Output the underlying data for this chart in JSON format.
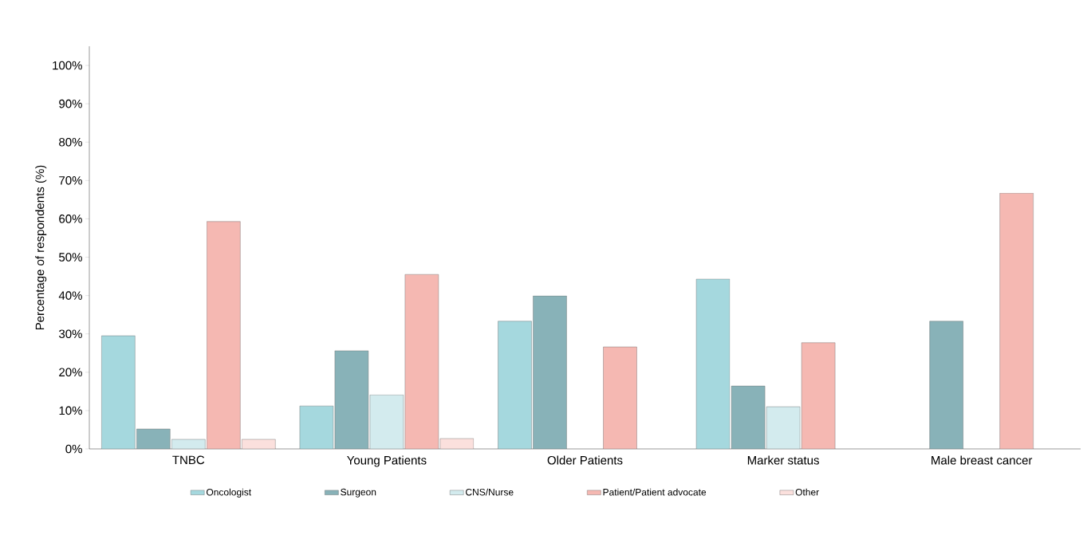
{
  "chart_data": {
    "type": "bar",
    "ylabel": "Percentage of respondents (%)",
    "categories": [
      "TNBC",
      "Young Patients",
      "Older Patients",
      "Marker status",
      "Male breast cancer"
    ],
    "series": [
      {
        "name": "Oncologist",
        "color": "#a5d8de",
        "values": [
          29.5,
          11.2,
          33.3,
          44.3,
          null
        ]
      },
      {
        "name": "Surgeon",
        "color": "#88b2b8",
        "values": [
          5.2,
          25.6,
          39.9,
          16.4,
          33.3
        ]
      },
      {
        "name": "CNS/Nurse",
        "color": "#d3ebee",
        "values": [
          2.5,
          14.1,
          null,
          11.0,
          null
        ]
      },
      {
        "name": "Patient/Patient advocate",
        "color": "#f5b8b2",
        "values": [
          59.3,
          45.5,
          26.6,
          27.7,
          66.7
        ]
      },
      {
        "name": "Other",
        "color": "#fbe0dd",
        "values": [
          2.5,
          2.7,
          null,
          null,
          null
        ]
      }
    ],
    "ylim": [
      0,
      105
    ],
    "yticks": [
      {
        "value": 0,
        "label": "0%"
      },
      {
        "value": 10,
        "label": "10%"
      },
      {
        "value": 20,
        "label": "20%"
      },
      {
        "value": 30,
        "label": "30%"
      },
      {
        "value": 40,
        "label": "40%"
      },
      {
        "value": 50,
        "label": "50%"
      },
      {
        "value": 60,
        "label": "60%"
      },
      {
        "value": 70,
        "label": "70%"
      },
      {
        "value": 80,
        "label": "80%"
      },
      {
        "value": 90,
        "label": "90%"
      },
      {
        "value": 100,
        "label": "100%"
      }
    ],
    "grid": false,
    "legend": "bottom"
  }
}
